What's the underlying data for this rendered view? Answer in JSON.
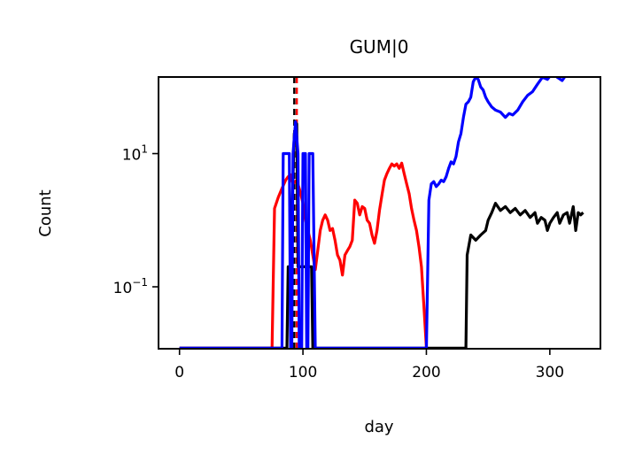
{
  "chart_data": {
    "type": "line",
    "title": "GUM|0",
    "xlabel": "day",
    "ylabel": "Count",
    "xlim": [
      -17,
      341
    ],
    "ylim_log10": [
      -1.93,
      2.15
    ],
    "y_scale": "log",
    "x_ticks": [
      0,
      100,
      200,
      300
    ],
    "y_ticks": [
      {
        "value": 10,
        "base": "10",
        "exp": "1"
      },
      {
        "value": 0.1,
        "base": "10",
        "exp": "−1"
      }
    ],
    "grid": false,
    "legend": "none",
    "vlines": [
      {
        "x": 93,
        "color": "#000000",
        "style": "dashed"
      },
      {
        "x": 95,
        "color": "#ff0000",
        "style": "dashed"
      }
    ],
    "series": [
      {
        "color": "#ff0000",
        "points": [
          [
            0,
            0.012
          ],
          [
            75,
            0.012
          ],
          [
            77,
            1.5
          ],
          [
            80,
            2.2
          ],
          [
            83,
            3.0
          ],
          [
            86,
            4.0
          ],
          [
            88,
            4.5
          ],
          [
            90,
            4.8
          ],
          [
            92,
            3.5
          ],
          [
            95,
            4.0
          ],
          [
            98,
            2.6
          ],
          [
            100,
            1.8
          ],
          [
            102,
            1.0
          ],
          [
            104,
            0.7
          ],
          [
            106,
            0.5
          ],
          [
            108,
            0.3
          ],
          [
            110,
            0.18
          ],
          [
            112,
            0.35
          ],
          [
            114,
            0.7
          ],
          [
            116,
            1.0
          ],
          [
            118,
            1.2
          ],
          [
            120,
            1.0
          ],
          [
            122,
            0.7
          ],
          [
            124,
            0.75
          ],
          [
            126,
            0.5
          ],
          [
            128,
            0.3
          ],
          [
            130,
            0.25
          ],
          [
            132,
            0.15
          ],
          [
            134,
            0.3
          ],
          [
            136,
            0.35
          ],
          [
            138,
            0.4
          ],
          [
            140,
            0.5
          ],
          [
            142,
            2.0
          ],
          [
            144,
            1.8
          ],
          [
            146,
            1.2
          ],
          [
            148,
            1.6
          ],
          [
            150,
            1.5
          ],
          [
            152,
            1.0
          ],
          [
            154,
            0.9
          ],
          [
            156,
            0.6
          ],
          [
            158,
            0.45
          ],
          [
            160,
            0.7
          ],
          [
            162,
            1.4
          ],
          [
            164,
            2.4
          ],
          [
            166,
            4.0
          ],
          [
            168,
            5.0
          ],
          [
            170,
            6.0
          ],
          [
            172,
            7.0
          ],
          [
            174,
            6.5
          ],
          [
            176,
            7.0
          ],
          [
            178,
            6.0
          ],
          [
            180,
            7.2
          ],
          [
            182,
            5.0
          ],
          [
            184,
            3.5
          ],
          [
            186,
            2.5
          ],
          [
            188,
            1.5
          ],
          [
            190,
            1.0
          ],
          [
            192,
            0.7
          ],
          [
            194,
            0.4
          ],
          [
            196,
            0.2
          ],
          [
            198,
            0.05
          ],
          [
            200,
            0.012
          ]
        ]
      },
      {
        "color": "#000000",
        "points": [
          [
            0,
            0.012
          ],
          [
            87,
            0.012
          ],
          [
            88,
            0.2
          ],
          [
            90,
            0.2
          ],
          [
            91,
            1.0
          ],
          [
            93,
            20
          ],
          [
            95,
            28
          ],
          [
            96,
            0.2
          ],
          [
            100,
            0.2
          ],
          [
            103,
            0.2
          ],
          [
            105,
            0.2
          ],
          [
            107,
            0.2
          ],
          [
            108,
            0.012
          ],
          [
            232,
            0.012
          ],
          [
            233,
            0.3
          ],
          [
            236,
            0.6
          ],
          [
            240,
            0.5
          ],
          [
            244,
            0.6
          ],
          [
            248,
            0.7
          ],
          [
            250,
            1.0
          ],
          [
            253,
            1.3
          ],
          [
            256,
            1.8
          ],
          [
            260,
            1.4
          ],
          [
            264,
            1.6
          ],
          [
            268,
            1.3
          ],
          [
            272,
            1.5
          ],
          [
            276,
            1.2
          ],
          [
            280,
            1.4
          ],
          [
            284,
            1.1
          ],
          [
            288,
            1.3
          ],
          [
            290,
            0.9
          ],
          [
            293,
            1.1
          ],
          [
            296,
            1.0
          ],
          [
            298,
            0.7
          ],
          [
            300,
            0.9
          ],
          [
            303,
            1.1
          ],
          [
            306,
            1.3
          ],
          [
            308,
            0.9
          ],
          [
            311,
            1.2
          ],
          [
            314,
            1.3
          ],
          [
            316,
            0.9
          ],
          [
            319,
            1.6
          ],
          [
            321,
            0.7
          ],
          [
            323,
            1.3
          ],
          [
            325,
            1.2
          ],
          [
            327,
            1.3
          ]
        ]
      },
      {
        "color": "#0000ff",
        "points": [
          [
            0,
            0.012
          ],
          [
            83,
            0.012
          ],
          [
            84,
            10
          ],
          [
            89,
            10
          ],
          [
            90,
            0.012
          ],
          [
            91,
            0.012
          ],
          [
            92,
            10
          ],
          [
            94,
            30
          ],
          [
            96,
            10
          ],
          [
            97,
            0.012
          ],
          [
            99,
            0.012
          ],
          [
            100,
            10
          ],
          [
            102,
            10
          ],
          [
            103,
            0.012
          ],
          [
            104,
            0.012
          ],
          [
            105,
            10
          ],
          [
            108,
            10
          ],
          [
            110,
            0.012
          ],
          [
            200,
            0.012
          ],
          [
            202,
            2.0
          ],
          [
            204,
            3.5
          ],
          [
            206,
            3.8
          ],
          [
            208,
            3.2
          ],
          [
            210,
            3.5
          ],
          [
            212,
            4.0
          ],
          [
            214,
            3.8
          ],
          [
            216,
            4.5
          ],
          [
            218,
            6.0
          ],
          [
            220,
            7.5
          ],
          [
            222,
            7.0
          ],
          [
            224,
            9.0
          ],
          [
            226,
            15.0
          ],
          [
            228,
            20.0
          ],
          [
            230,
            35.0
          ],
          [
            232,
            55.0
          ],
          [
            234,
            60.0
          ],
          [
            236,
            70.0
          ],
          [
            238,
            120.0
          ],
          [
            240,
            140.0
          ],
          [
            242,
            130.0
          ],
          [
            244,
            100.0
          ],
          [
            246,
            90.0
          ],
          [
            248,
            70.0
          ],
          [
            250,
            60.0
          ],
          [
            253,
            50.0
          ],
          [
            256,
            45.0
          ],
          [
            260,
            42.0
          ],
          [
            264,
            35.0
          ],
          [
            267,
            40.0
          ],
          [
            270,
            38.0
          ],
          [
            274,
            45.0
          ],
          [
            278,
            60.0
          ],
          [
            282,
            75.0
          ],
          [
            286,
            85.0
          ],
          [
            290,
            110.0
          ],
          [
            294,
            140.0
          ],
          [
            298,
            130.0
          ],
          [
            302,
            160.0
          ],
          [
            306,
            140.0
          ],
          [
            310,
            125.0
          ],
          [
            314,
            160.0
          ],
          [
            316,
            220.0
          ],
          [
            319,
            230.0
          ],
          [
            322,
            170.0
          ],
          [
            325,
            160.0
          ]
        ]
      }
    ]
  }
}
